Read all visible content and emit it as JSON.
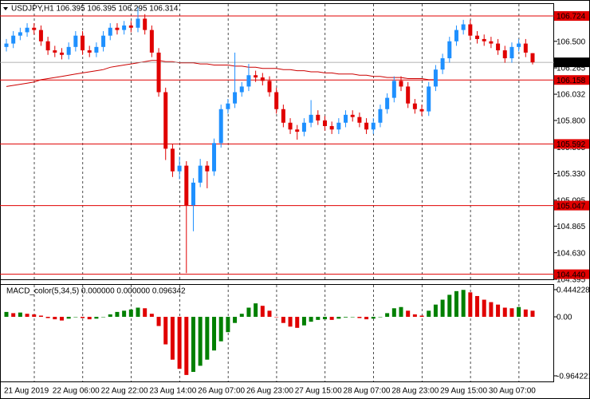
{
  "chart_data": [
    {
      "type": "candlestick",
      "title": "USDJPY,H1  106.395 106.395 106.295 106.314",
      "categories": [
        "21 Aug 2019",
        null,
        null,
        null,
        null,
        null,
        null,
        "22 Aug 06:00",
        null,
        null,
        null,
        null,
        null,
        null,
        "22 Aug 22:00",
        null,
        null,
        null,
        null,
        null,
        null,
        "23 Aug 14:00",
        null,
        null,
        null,
        null,
        null,
        null,
        "26 Aug 07:00",
        null,
        null,
        null,
        null,
        null,
        null,
        "26 Aug 23:00",
        null,
        null,
        null,
        null,
        null,
        null,
        "27 Aug 15:00",
        null,
        null,
        null,
        null,
        null,
        null,
        "28 Aug 07:00",
        null,
        null,
        null,
        null,
        null,
        null,
        "28 Aug 23:00",
        null,
        null,
        null,
        null,
        null,
        null,
        "29 Aug 15:00",
        null,
        null,
        null,
        null,
        null,
        null,
        "30 Aug 07:00",
        null,
        null,
        null,
        null,
        null,
        null
      ],
      "open": [
        106.45,
        106.48,
        106.55,
        106.58,
        106.62,
        106.6,
        106.5,
        106.42,
        106.4,
        106.38,
        106.45,
        106.55,
        106.42,
        106.4,
        106.45,
        106.55,
        106.62,
        106.6,
        106.64,
        106.62,
        106.7,
        106.6,
        106.4,
        106.05,
        105.55,
        105.35,
        105.4,
        105.05,
        105.25,
        105.4,
        105.35,
        105.6,
        105.9,
        105.95,
        106.05,
        106.1,
        106.2,
        106.18,
        106.15,
        106.05,
        105.9,
        105.78,
        105.72,
        105.7,
        105.78,
        105.85,
        105.8,
        105.75,
        105.72,
        105.78,
        105.85,
        105.83,
        105.78,
        105.72,
        105.78,
        105.9,
        106.0,
        106.15,
        106.1,
        105.95,
        105.9,
        105.88,
        106.1,
        106.25,
        106.35,
        106.5,
        106.6,
        106.65,
        106.55,
        106.52,
        106.5,
        106.48,
        106.42,
        106.35,
        106.45,
        106.48,
        106.395
      ],
      "high": [
        106.52,
        106.59,
        106.62,
        106.66,
        106.66,
        106.64,
        106.54,
        106.46,
        106.44,
        106.49,
        106.59,
        106.59,
        106.46,
        106.49,
        106.59,
        106.66,
        106.66,
        106.68,
        106.68,
        106.8,
        106.74,
        106.64,
        106.44,
        106.09,
        105.59,
        105.48,
        105.44,
        105.29,
        105.46,
        105.44,
        105.64,
        105.94,
        105.99,
        106.4,
        106.14,
        106.3,
        106.24,
        106.22,
        106.19,
        106.09,
        105.94,
        105.82,
        105.76,
        105.82,
        105.98,
        105.89,
        105.84,
        105.79,
        105.82,
        105.89,
        105.89,
        105.87,
        105.82,
        105.82,
        105.94,
        106.04,
        106.19,
        106.19,
        106.14,
        105.99,
        105.94,
        106.14,
        106.29,
        106.39,
        106.54,
        106.64,
        106.69,
        106.69,
        106.59,
        106.56,
        106.54,
        106.52,
        106.46,
        106.49,
        106.52,
        106.52,
        106.395
      ],
      "low": [
        106.41,
        106.44,
        106.51,
        106.54,
        106.56,
        106.46,
        106.38,
        106.36,
        106.34,
        106.34,
        106.41,
        106.38,
        106.36,
        106.36,
        106.41,
        106.51,
        106.56,
        106.56,
        106.58,
        106.58,
        106.56,
        106.36,
        106.01,
        105.45,
        105.3,
        105.28,
        104.45,
        104.82,
        105.21,
        105.2,
        105.31,
        105.56,
        105.86,
        105.91,
        106.01,
        106.06,
        106.14,
        106.11,
        106.01,
        105.86,
        105.74,
        105.68,
        105.63,
        105.66,
        105.74,
        105.76,
        105.71,
        105.68,
        105.68,
        105.74,
        105.79,
        105.74,
        105.68,
        105.68,
        105.74,
        105.86,
        105.96,
        106.06,
        105.91,
        105.86,
        105.84,
        105.84,
        106.06,
        106.21,
        106.31,
        106.46,
        106.56,
        106.51,
        106.48,
        106.46,
        106.44,
        106.38,
        106.31,
        106.31,
        106.41,
        106.36,
        106.295
      ],
      "close": [
        106.48,
        106.55,
        106.58,
        106.62,
        106.6,
        106.5,
        106.42,
        106.4,
        106.38,
        106.45,
        106.55,
        106.42,
        106.4,
        106.45,
        106.55,
        106.62,
        106.6,
        106.64,
        106.62,
        106.7,
        106.6,
        106.4,
        106.05,
        105.55,
        105.35,
        105.4,
        105.05,
        105.25,
        105.4,
        105.35,
        105.6,
        105.9,
        105.95,
        106.05,
        106.1,
        106.2,
        106.18,
        106.15,
        106.05,
        105.9,
        105.78,
        105.72,
        105.7,
        105.78,
        105.85,
        105.8,
        105.75,
        105.72,
        105.78,
        105.85,
        105.83,
        105.78,
        105.72,
        105.78,
        105.9,
        106.0,
        106.15,
        106.1,
        105.95,
        105.9,
        105.88,
        106.1,
        106.25,
        106.35,
        106.5,
        106.6,
        106.65,
        106.55,
        106.52,
        106.5,
        106.48,
        106.42,
        106.35,
        106.45,
        106.48,
        106.4,
        106.314
      ],
      "up_color": "#1e90ff",
      "down_color": "#e00000",
      "overlay": {
        "color": "#cc0000",
        "values": [
          106.1,
          106.11,
          106.12,
          106.13,
          106.14,
          106.16,
          106.17,
          106.18,
          106.19,
          106.2,
          106.21,
          106.22,
          106.23,
          106.24,
          106.25,
          106.27,
          106.28,
          106.29,
          106.3,
          106.31,
          106.32,
          106.33,
          106.33,
          106.32,
          106.32,
          106.31,
          106.31,
          106.31,
          106.3,
          106.3,
          106.29,
          106.29,
          106.29,
          106.28,
          106.28,
          106.27,
          106.27,
          106.26,
          106.26,
          106.26,
          106.25,
          106.25,
          106.24,
          106.24,
          106.23,
          106.23,
          106.22,
          106.22,
          106.21,
          106.21,
          106.21,
          106.2,
          106.2,
          106.19,
          106.19,
          106.18,
          106.18,
          106.18,
          106.17,
          106.17,
          106.17,
          106.16,
          106.16,
          null,
          null,
          null,
          null,
          null,
          null,
          null,
          null,
          null,
          null,
          null,
          null,
          null,
          null
        ]
      },
      "levels": [
        106.724,
        106.158,
        105.592,
        105.047,
        {
          "value": 104.44,
          "label": "104.440"
        }
      ],
      "level_color": "#e00000",
      "current_price": 106.314,
      "ylim": [
        104.395,
        106.83
      ],
      "yticks": [
        {
          "value": 106.5,
          "label": "106.500"
        },
        106.265,
        106.032,
        {
          "value": 105.8,
          "label": "105.800"
        },
        105.565,
        {
          "value": 105.33,
          "label": "105.330"
        },
        105.095,
        104.865,
        {
          "value": 104.63,
          "label": "104.630"
        },
        104.395
      ]
    },
    {
      "type": "histogram",
      "title": "MACD_color(5,34,5) 0.000000 0.000000 0.096342",
      "values": [
        0.08,
        0.06,
        0.07,
        0.05,
        0.04,
        0.02,
        -0.02,
        -0.04,
        -0.06,
        -0.03,
        0.0,
        -0.02,
        -0.04,
        -0.03,
        0.0,
        0.04,
        0.08,
        0.1,
        0.12,
        0.15,
        0.14,
        0.05,
        -0.15,
        -0.45,
        -0.7,
        -0.85,
        -0.95,
        -0.9,
        -0.8,
        -0.7,
        -0.55,
        -0.4,
        -0.25,
        -0.1,
        0.05,
        0.15,
        0.22,
        0.18,
        0.1,
        0.0,
        -0.1,
        -0.16,
        -0.18,
        -0.14,
        -0.08,
        -0.05,
        -0.04,
        -0.05,
        -0.03,
        -0.01,
        0.0,
        -0.02,
        -0.04,
        -0.03,
        0.0,
        0.06,
        0.14,
        0.16,
        0.1,
        0.04,
        0.02,
        0.1,
        0.2,
        0.28,
        0.36,
        0.42,
        0.44,
        0.4,
        0.34,
        0.28,
        0.24,
        0.2,
        0.15,
        0.14,
        0.16,
        0.12,
        0.1
      ],
      "up_color": "#008000",
      "down_color": "#e00000",
      "ylim": [
        -1.056,
        0.522
      ],
      "yticks": [
        0.444228,
        {
          "value": 0,
          "label": "0.00"
        },
        -0.964221
      ]
    }
  ]
}
